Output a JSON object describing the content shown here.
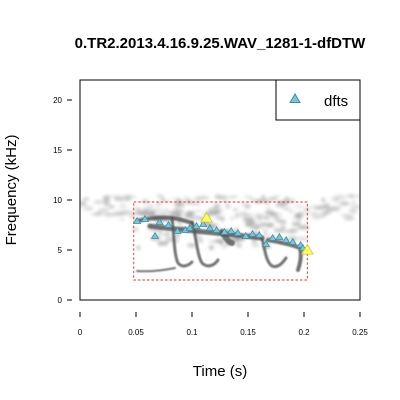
{
  "chart_data": {
    "type": "scatter",
    "title": "0.TR2.2013.4.16.9.25.WAV_1281-1-dfDTW",
    "xlabel": "Time (s)",
    "ylabel": "Frequency (kHz)",
    "xlim": [
      0,
      0.25
    ],
    "ylim": [
      0,
      22
    ],
    "x_ticks": [
      {
        "value": 0,
        "label": "0"
      },
      {
        "value": 0.05,
        "label": "0.05"
      },
      {
        "value": 0.1,
        "label": "0.1"
      },
      {
        "value": 0.15,
        "label": "0.15"
      },
      {
        "value": 0.2,
        "label": "0.2"
      },
      {
        "value": 0.25,
        "label": "0.25"
      }
    ],
    "y_ticks": [
      {
        "value": 0,
        "label": "0"
      },
      {
        "value": 5,
        "label": "5"
      },
      {
        "value": 10,
        "label": "10"
      },
      {
        "value": 15,
        "label": "15"
      },
      {
        "value": 20,
        "label": "20"
      }
    ],
    "grid": false,
    "legend": {
      "position": "top-right",
      "entries": [
        "dfts"
      ]
    },
    "colors": {
      "points": "#7fc4d4",
      "point_outline": "#3a8fa6",
      "highlight": "#ffff55",
      "selection_box": "#e03030",
      "spectrogram": "#505050"
    },
    "selection_box": {
      "x": [
        0.048,
        0.203
      ],
      "y": [
        2.0,
        9.8
      ]
    },
    "series": [
      {
        "name": "dfts",
        "points": [
          {
            "x": 0.051,
            "y": 7.9
          },
          {
            "x": 0.058,
            "y": 8.1
          },
          {
            "x": 0.067,
            "y": 6.4
          },
          {
            "x": 0.071,
            "y": 7.8
          },
          {
            "x": 0.079,
            "y": 7.5
          },
          {
            "x": 0.087,
            "y": 6.9
          },
          {
            "x": 0.094,
            "y": 7.0
          },
          {
            "x": 0.098,
            "y": 7.2
          },
          {
            "x": 0.104,
            "y": 7.4
          },
          {
            "x": 0.11,
            "y": 7.6
          },
          {
            "x": 0.116,
            "y": 7.2
          },
          {
            "x": 0.122,
            "y": 7.0
          },
          {
            "x": 0.129,
            "y": 6.8
          },
          {
            "x": 0.135,
            "y": 6.9
          },
          {
            "x": 0.141,
            "y": 6.7
          },
          {
            "x": 0.148,
            "y": 6.4
          },
          {
            "x": 0.154,
            "y": 6.6
          },
          {
            "x": 0.16,
            "y": 6.5
          },
          {
            "x": 0.166,
            "y": 5.6
          },
          {
            "x": 0.172,
            "y": 6.2
          },
          {
            "x": 0.178,
            "y": 6.3
          },
          {
            "x": 0.184,
            "y": 6.0
          },
          {
            "x": 0.19,
            "y": 5.8
          },
          {
            "x": 0.197,
            "y": 5.5
          },
          {
            "x": 0.199,
            "y": 5.2
          }
        ],
        "highlighted": [
          {
            "x": 0.113,
            "y": 8.2
          },
          {
            "x": 0.203,
            "y": 5.0
          }
        ]
      }
    ]
  }
}
